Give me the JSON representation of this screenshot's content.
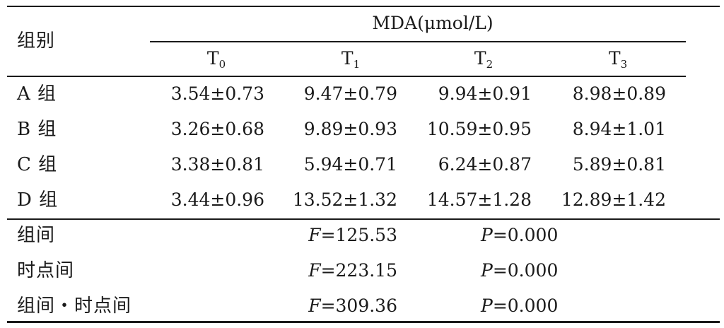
{
  "table": {
    "group_header": "组别",
    "measure_header": "MDA(μmol/L)",
    "time_headers": [
      {
        "base": "T",
        "sub": "0"
      },
      {
        "base": "T",
        "sub": "1"
      },
      {
        "base": "T",
        "sub": "2"
      },
      {
        "base": "T",
        "sub": "3"
      }
    ],
    "rows": [
      {
        "group": "A 组",
        "values": [
          "3.54±0.73",
          "9.47±0.79",
          "9.94±0.91",
          "8.98±0.89"
        ]
      },
      {
        "group": "B 组",
        "values": [
          "3.26±0.68",
          "9.89±0.93",
          "10.59±0.95",
          "8.94±1.01"
        ]
      },
      {
        "group": "C 组",
        "values": [
          "3.38±0.81",
          "5.94±0.71",
          "6.24±0.87",
          "5.89±0.81"
        ]
      },
      {
        "group": "D 组",
        "values": [
          "3.44±0.96",
          "13.52±1.32",
          "14.57±1.28",
          "12.89±1.42"
        ]
      }
    ],
    "stats": [
      {
        "label": "组间",
        "f_symbol": "F",
        "f_value": "=125.53",
        "p_symbol": "P",
        "p_value": "=0.000"
      },
      {
        "label": "时点间",
        "f_symbol": "F",
        "f_value": "=223.15",
        "p_symbol": "P",
        "p_value": "=0.000"
      },
      {
        "label": "组间・时点间",
        "f_symbol": "F",
        "f_value": "=309.36",
        "p_symbol": "P",
        "p_value": "=0.000"
      }
    ]
  }
}
